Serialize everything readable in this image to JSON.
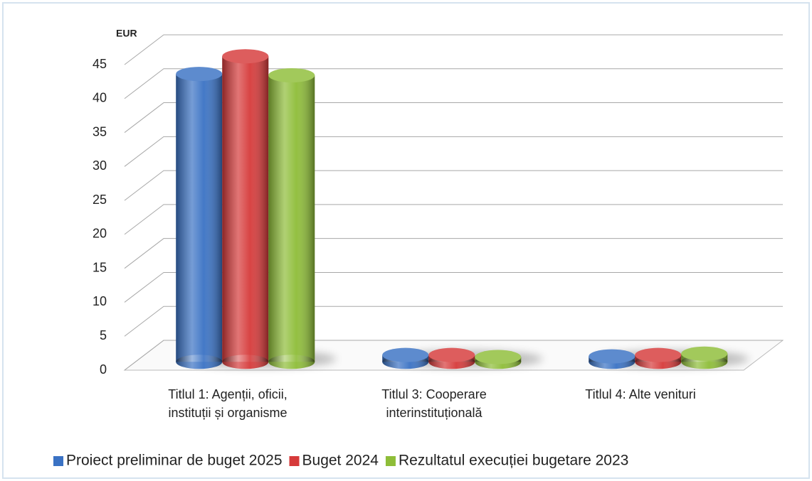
{
  "chart_data": {
    "type": "bar",
    "y_axis_label": "EUR",
    "categories": [
      [
        "Titlul 1: Agenții, oficii,",
        "instituții și organisme"
      ],
      [
        "Titlul 3: Cooperare",
        "interinstituțională"
      ],
      [
        "Titlul 4: Alte venituri"
      ]
    ],
    "series": [
      {
        "name": "Proiect preliminar de buget 2025",
        "color": "#3a72c4",
        "values": [
          42.4,
          1.0,
          0.8
        ]
      },
      {
        "name": "Buget 2024",
        "color": "#d63a3a",
        "values": [
          45,
          1.0,
          1.0
        ]
      },
      {
        "name": "Rezultatul execuției bugetare 2023",
        "color": "#8ebd38",
        "values": [
          42.2,
          0.7,
          1.2
        ]
      }
    ],
    "ylim": [
      0,
      45
    ],
    "yticks": [
      0,
      5,
      10,
      15,
      20,
      25,
      30,
      35,
      40,
      45
    ],
    "grid": true,
    "legend": "bottom"
  }
}
